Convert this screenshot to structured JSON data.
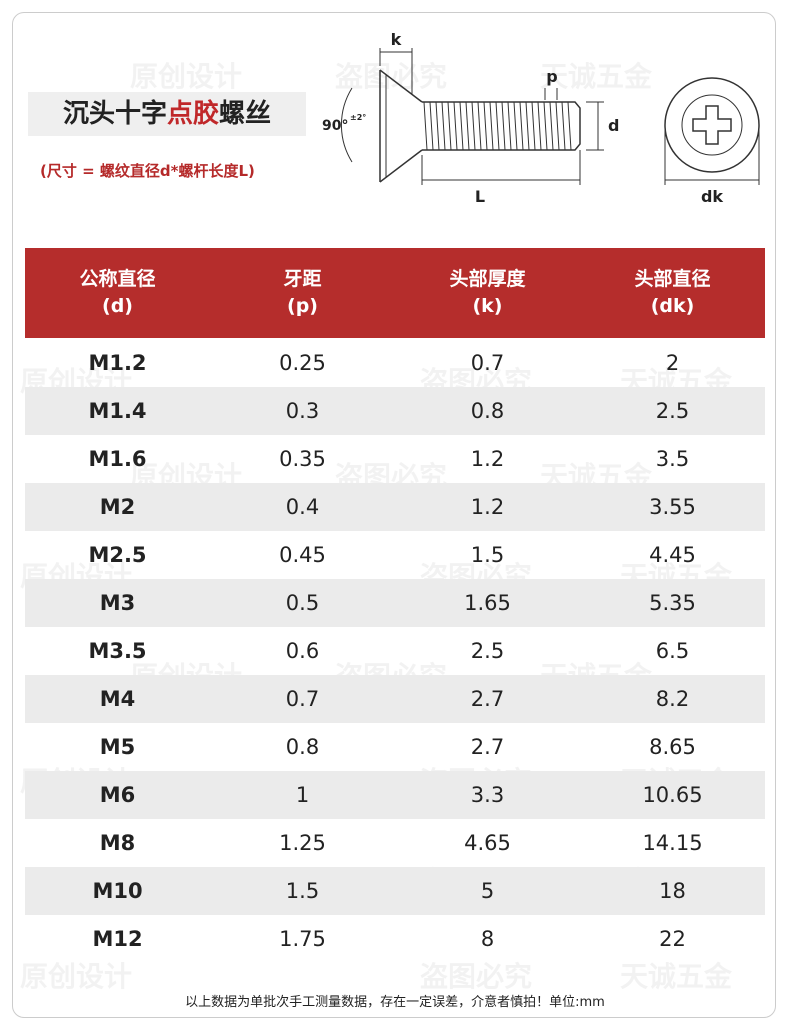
{
  "header": {
    "title_parts": [
      "沉头十字",
      "点胶",
      "螺丝"
    ],
    "subtitle": "(尺寸 = 螺纹直径d*螺杆长度L)"
  },
  "diagram": {
    "k": "k",
    "p": "p",
    "d": "d",
    "L": "L",
    "dk": "dk",
    "angle": "90°",
    "tolerance": "±2°"
  },
  "table": {
    "headers": [
      [
        "公称直径",
        "(d)"
      ],
      [
        "牙距",
        "(p)"
      ],
      [
        "头部厚度",
        "(k)"
      ],
      [
        "头部直径",
        "(dk)"
      ]
    ],
    "rows": [
      [
        "M1.2",
        "0.25",
        "0.7",
        "2"
      ],
      [
        "M1.4",
        "0.3",
        "0.8",
        "2.5"
      ],
      [
        "M1.6",
        "0.35",
        "1.2",
        "3.5"
      ],
      [
        "M2",
        "0.4",
        "1.2",
        "3.55"
      ],
      [
        "M2.5",
        "0.45",
        "1.5",
        "4.45"
      ],
      [
        "M3",
        "0.5",
        "1.65",
        "5.35"
      ],
      [
        "M3.5",
        "0.6",
        "2.5",
        "6.5"
      ],
      [
        "M4",
        "0.7",
        "2.7",
        "8.2"
      ],
      [
        "M5",
        "0.8",
        "2.7",
        "8.65"
      ],
      [
        "M6",
        "1",
        "3.3",
        "10.65"
      ],
      [
        "M8",
        "1.25",
        "4.65",
        "14.15"
      ],
      [
        "M10",
        "1.5",
        "5",
        "18"
      ],
      [
        "M12",
        "1.75",
        "8",
        "22"
      ]
    ]
  },
  "footer": "以上数据为单批次手工测量数据，存在一定误差，介意者慎拍！单位:mm",
  "watermarks": [
    "原创设计",
    "盗图必究",
    "天诚五金"
  ]
}
